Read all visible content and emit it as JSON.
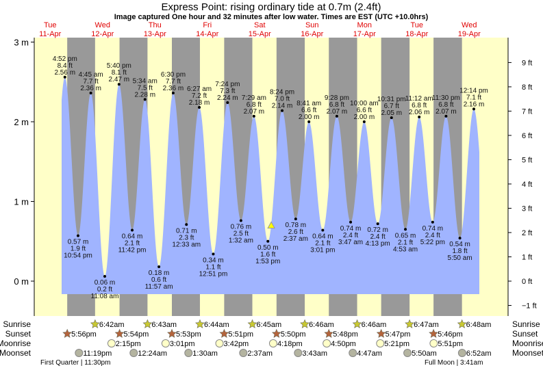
{
  "title": "Express Point: rising  ordinary tide at 0.7m (2.4ft)",
  "subtitle": "Image captured One hour and 32 minutes after low water. Times are EST (UTC +10.0hrs)",
  "colors": {
    "day": "#ffffc8",
    "night": "#999999",
    "water": "#a0b4ff",
    "day_label": "#e00000",
    "sunrise": "#c8c832",
    "sunset": "#b4643c",
    "moonrise": "#ffffc8",
    "moonset": "#b4b4a0",
    "marker": "#ffff00"
  },
  "days": [
    {
      "name": "Tue",
      "date": "11-Apr"
    },
    {
      "name": "Wed",
      "date": "12-Apr"
    },
    {
      "name": "Thu",
      "date": "13-Apr"
    },
    {
      "name": "Fri",
      "date": "14-Apr"
    },
    {
      "name": "Sat",
      "date": "15-Apr"
    },
    {
      "name": "Sun",
      "date": "16-Apr"
    },
    {
      "name": "Mon",
      "date": "17-Apr"
    },
    {
      "name": "Tue",
      "date": "18-Apr"
    },
    {
      "name": "Wed",
      "date": "19-Apr"
    }
  ],
  "chart_data": {
    "type": "area",
    "title": "Express Point: rising  ordinary tide at 0.7m (2.4ft)",
    "y_left_ticks": [
      {
        "v": 3,
        "label": "3 m"
      },
      {
        "v": 2,
        "label": "2 m"
      },
      {
        "v": 1,
        "label": "1 m"
      },
      {
        "v": 0,
        "label": "0 m"
      }
    ],
    "y_right_ticks": [
      {
        "v": 9,
        "label": "9 ft"
      },
      {
        "v": 8,
        "label": "8 ft"
      },
      {
        "v": 7,
        "label": "7 ft"
      },
      {
        "v": 6,
        "label": "6 ft"
      },
      {
        "v": 5,
        "label": "5 ft"
      },
      {
        "v": 4,
        "label": "4 ft"
      },
      {
        "v": 3,
        "label": "3 ft"
      },
      {
        "v": 2,
        "label": "2 ft"
      },
      {
        "v": 1,
        "label": "1 ft"
      },
      {
        "v": 0,
        "label": "0 ft"
      },
      {
        "v": -1,
        "label": "−1 ft"
      }
    ],
    "ylim_m": [
      -0.2,
      3.05
    ],
    "current": {
      "day": 4,
      "time": "3:25 pm",
      "m": 0.7,
      "ft": 2.4
    },
    "extremes": [
      {
        "day": 0,
        "time": "4:52 pm",
        "m": "2.56",
        "ft": "8.4",
        "type": "high"
      },
      {
        "day": 0,
        "time": "10:54 pm",
        "m": "0.57",
        "ft": "1.9",
        "type": "low"
      },
      {
        "day": 1,
        "time": "4:45 am",
        "m": "2.36",
        "ft": "7.7",
        "type": "high"
      },
      {
        "day": 1,
        "time": "11:08 am",
        "m": "0.06",
        "ft": "0.2",
        "type": "low"
      },
      {
        "day": 1,
        "time": "5:40 pm",
        "m": "2.47",
        "ft": "8.1",
        "type": "high"
      },
      {
        "day": 1,
        "time": "11:42 pm",
        "m": "0.64",
        "ft": "2.1",
        "type": "low"
      },
      {
        "day": 2,
        "time": "5:34 am",
        "m": "2.28",
        "ft": "7.5",
        "type": "high"
      },
      {
        "day": 2,
        "time": "11:57 am",
        "m": "0.18",
        "ft": "0.6",
        "type": "low"
      },
      {
        "day": 2,
        "time": "6:30 pm",
        "m": "2.36",
        "ft": "7.7",
        "type": "high"
      },
      {
        "day": 3,
        "time": "12:33 am",
        "m": "0.71",
        "ft": "2.3",
        "type": "low"
      },
      {
        "day": 3,
        "time": "6:27 am",
        "m": "2.18",
        "ft": "7.2",
        "type": "high"
      },
      {
        "day": 3,
        "time": "12:51 pm",
        "m": "0.34",
        "ft": "1.1",
        "type": "low"
      },
      {
        "day": 3,
        "time": "7:24 pm",
        "m": "2.24",
        "ft": "7.3",
        "type": "high"
      },
      {
        "day": 4,
        "time": "1:32 am",
        "m": "0.76",
        "ft": "2.5",
        "type": "low"
      },
      {
        "day": 4,
        "time": "7:29 am",
        "m": "2.07",
        "ft": "6.8",
        "type": "high"
      },
      {
        "day": 4,
        "time": "1:53 pm",
        "m": "0.50",
        "ft": "1.6",
        "type": "low"
      },
      {
        "day": 4,
        "time": "8:24 pm",
        "m": "2.14",
        "ft": "7.0",
        "type": "high"
      },
      {
        "day": 5,
        "time": "2:37 am",
        "m": "0.78",
        "ft": "2.6",
        "type": "low"
      },
      {
        "day": 5,
        "time": "8:41 am",
        "m": "2.00",
        "ft": "6.6",
        "type": "high"
      },
      {
        "day": 5,
        "time": "3:01 pm",
        "m": "0.64",
        "ft": "2.1",
        "type": "low"
      },
      {
        "day": 5,
        "time": "9:28 pm",
        "m": "2.07",
        "ft": "6.8",
        "type": "high"
      },
      {
        "day": 6,
        "time": "3:47 am",
        "m": "0.74",
        "ft": "2.4",
        "type": "low"
      },
      {
        "day": 6,
        "time": "10:00 am",
        "m": "2.00",
        "ft": "6.6",
        "type": "high"
      },
      {
        "day": 6,
        "time": "4:13 pm",
        "m": "0.72",
        "ft": "2.4",
        "type": "low"
      },
      {
        "day": 6,
        "time": "10:31 pm",
        "m": "2.05",
        "ft": "6.7",
        "type": "high"
      },
      {
        "day": 7,
        "time": "4:53 am",
        "m": "0.65",
        "ft": "2.1",
        "type": "low"
      },
      {
        "day": 7,
        "time": "11:12 am",
        "m": "2.06",
        "ft": "6.8",
        "type": "high"
      },
      {
        "day": 7,
        "time": "5:22 pm",
        "m": "0.74",
        "ft": "2.4",
        "type": "low"
      },
      {
        "day": 7,
        "time": "11:30 pm",
        "m": "2.07",
        "ft": "6.8",
        "type": "high"
      },
      {
        "day": 8,
        "time": "5:50 am",
        "m": "0.54",
        "ft": "1.8",
        "type": "low"
      },
      {
        "day": 8,
        "time": "12:14 pm",
        "m": "2.16",
        "ft": "7.1",
        "type": "high"
      }
    ]
  },
  "rows": {
    "sunrise": "Sunrise",
    "sunset": "Sunset",
    "moonrise": "Moonrise",
    "moonset": "Moonset"
  },
  "sunrise": [
    {
      "day": 1,
      "time": "6:42am"
    },
    {
      "day": 2,
      "time": "6:43am"
    },
    {
      "day": 3,
      "time": "6:44am"
    },
    {
      "day": 4,
      "time": "6:45am"
    },
    {
      "day": 5,
      "time": "6:46am"
    },
    {
      "day": 6,
      "time": "6:46am"
    },
    {
      "day": 7,
      "time": "6:47am"
    },
    {
      "day": 8,
      "time": "6:48am"
    }
  ],
  "sunset": [
    {
      "day": 0,
      "time": "5:56pm"
    },
    {
      "day": 1,
      "time": "5:54pm"
    },
    {
      "day": 2,
      "time": "5:53pm"
    },
    {
      "day": 3,
      "time": "5:51pm"
    },
    {
      "day": 4,
      "time": "5:50pm"
    },
    {
      "day": 5,
      "time": "5:48pm"
    },
    {
      "day": 6,
      "time": "5:47pm"
    },
    {
      "day": 7,
      "time": "5:46pm"
    }
  ],
  "moonrise": [
    {
      "day": 1,
      "time": "2:15pm"
    },
    {
      "day": 2,
      "time": "3:01pm"
    },
    {
      "day": 3,
      "time": "3:42pm"
    },
    {
      "day": 4,
      "time": "4:18pm"
    },
    {
      "day": 5,
      "time": "4:50pm"
    },
    {
      "day": 6,
      "time": "5:21pm"
    },
    {
      "day": 7,
      "time": "5:51pm"
    }
  ],
  "moonset": [
    {
      "day": 0,
      "time": "11:19pm"
    },
    {
      "day": 2,
      "time": "12:24am"
    },
    {
      "day": 3,
      "time": "1:30am"
    },
    {
      "day": 4,
      "time": "2:37am"
    },
    {
      "day": 5,
      "time": "3:43am"
    },
    {
      "day": 6,
      "time": "4:47am"
    },
    {
      "day": 7,
      "time": "5:50am"
    },
    {
      "day": 8,
      "time": "6:52am"
    }
  ],
  "phases": [
    {
      "label": "First Quarter | 11:30pm"
    },
    {
      "label": "Full Moon | 3:41am"
    }
  ]
}
